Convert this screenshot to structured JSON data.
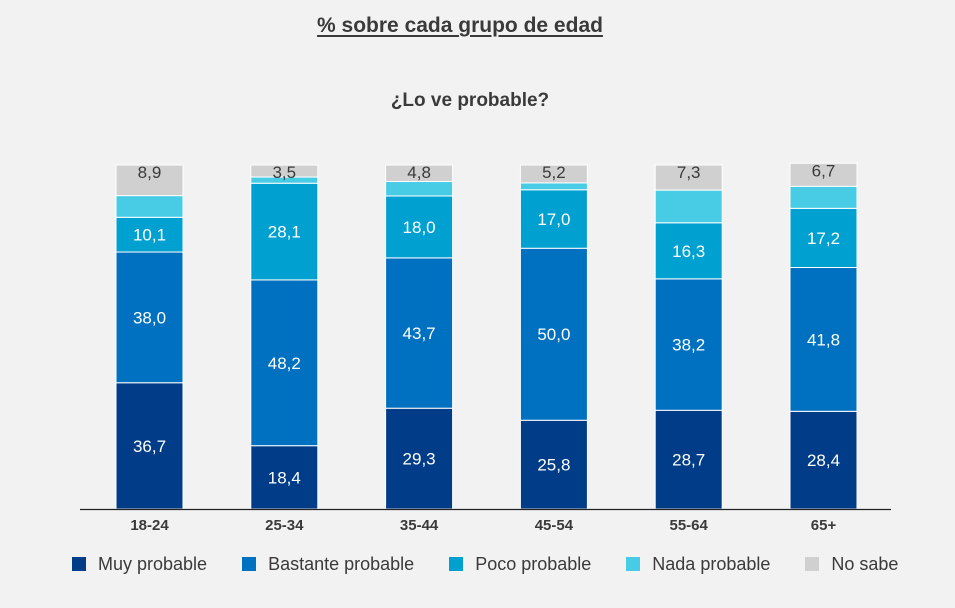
{
  "chart_data": {
    "type": "bar",
    "stacked": true,
    "title": "% sobre cada grupo de edad",
    "subtitle": "¿Lo ve probable?",
    "categories": [
      "18-24",
      "25-34",
      "35-44",
      "45-54",
      "55-64",
      "65+"
    ],
    "ylim": [
      0,
      100
    ],
    "grid": false,
    "legend_position": "bottom",
    "series": [
      {
        "name": "Muy probable",
        "color": "#003c87",
        "values": [
          36.7,
          18.4,
          29.3,
          25.8,
          28.7,
          28.4
        ],
        "labels": [
          "36,7",
          "18,4",
          "29,3",
          "25,8",
          "28,7",
          "28,4"
        ]
      },
      {
        "name": "Bastante probable",
        "color": "#0070c0",
        "values": [
          38.0,
          48.2,
          43.7,
          50.0,
          38.2,
          41.8
        ],
        "labels": [
          "38,0",
          "48,2",
          "43,7",
          "50,0",
          "38,2",
          "41,8"
        ]
      },
      {
        "name": "Poco probable",
        "color": "#00a0d0",
        "values": [
          10.1,
          28.1,
          18.0,
          17.0,
          16.3,
          17.2
        ],
        "labels": [
          "10,1",
          "28,1",
          "18,0",
          "17,0",
          "16,3",
          "17,2"
        ]
      },
      {
        "name": "Nada probable",
        "color": "#48cce6",
        "values": [
          6.3,
          1.8,
          4.2,
          2.0,
          9.5,
          6.4
        ],
        "labels": [
          "",
          "",
          "",
          "",
          "",
          ""
        ]
      },
      {
        "name": "No sabe",
        "color": "#d0d0d0",
        "values": [
          8.9,
          3.5,
          4.8,
          5.2,
          7.3,
          6.7
        ],
        "labels": [
          "8,9",
          "3,5",
          "4,8",
          "5,2",
          "7,3",
          "6,7"
        ]
      }
    ]
  }
}
